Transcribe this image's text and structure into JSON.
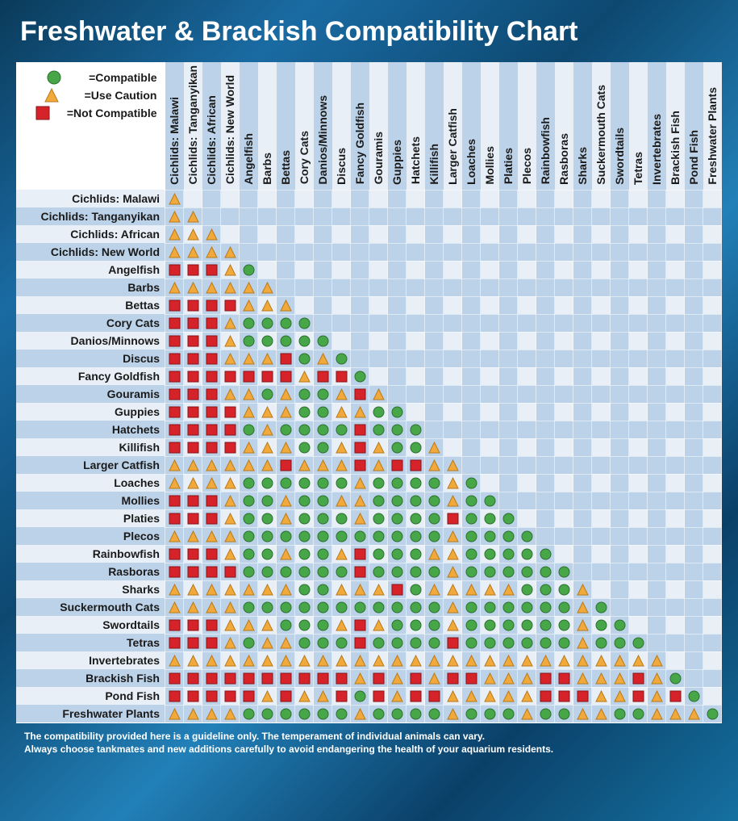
{
  "title": "Freshwater & Brackish Compatibility Chart",
  "legend": {
    "compatible": "=Compatible",
    "caution": "=Use Caution",
    "not": "=Not Compatible"
  },
  "colors": {
    "compatible_fill": "#46a648",
    "compatible_stroke": "#2e7030",
    "caution_fill": "#f2a93c",
    "caution_stroke": "#b87a1a",
    "not_fill": "#d6232a",
    "not_stroke": "#8a1318",
    "stripe_a": "#e8eff7",
    "stripe_b": "#bcd2e8"
  },
  "species": [
    "Cichlids: Malawi",
    "Cichlids: Tanganyikan",
    "Cichlids: African",
    "Cichlids: New World",
    "Angelfish",
    "Barbs",
    "Bettas",
    "Cory Cats",
    "Danios/Minnows",
    "Discus",
    "Fancy Goldfish",
    "Gouramis",
    "Guppies",
    "Hatchets",
    "Killifish",
    "Larger Catfish",
    "Loaches",
    "Mollies",
    "Platies",
    "Plecos",
    "Rainbowfish",
    "Rasboras",
    "Sharks",
    "Suckermouth Cats",
    "Swordtails",
    "Tetras",
    "Invertebrates",
    "Brackish Fish",
    "Pond Fish",
    "Freshwater Plants"
  ],
  "matrix": [
    [
      "Y"
    ],
    [
      "Y",
      "Y"
    ],
    [
      "Y",
      "Y",
      "Y"
    ],
    [
      "Y",
      "Y",
      "Y",
      "Y"
    ],
    [
      "R",
      "R",
      "R",
      "Y",
      "G"
    ],
    [
      "Y",
      "Y",
      "Y",
      "Y",
      "Y",
      "Y"
    ],
    [
      "R",
      "R",
      "R",
      "R",
      "Y",
      "Y",
      "Y"
    ],
    [
      "R",
      "R",
      "R",
      "Y",
      "G",
      "G",
      "G",
      "G"
    ],
    [
      "R",
      "R",
      "R",
      "Y",
      "G",
      "G",
      "G",
      "G",
      "G"
    ],
    [
      "R",
      "R",
      "R",
      "Y",
      "Y",
      "Y",
      "R",
      "G",
      "Y",
      "G"
    ],
    [
      "R",
      "R",
      "R",
      "R",
      "R",
      "R",
      "R",
      "Y",
      "R",
      "R",
      "G"
    ],
    [
      "R",
      "R",
      "R",
      "Y",
      "Y",
      "G",
      "Y",
      "G",
      "G",
      "Y",
      "R",
      "Y"
    ],
    [
      "R",
      "R",
      "R",
      "R",
      "Y",
      "Y",
      "Y",
      "G",
      "G",
      "Y",
      "Y",
      "G",
      "G"
    ],
    [
      "R",
      "R",
      "R",
      "R",
      "G",
      "Y",
      "G",
      "G",
      "G",
      "G",
      "R",
      "G",
      "G",
      "G"
    ],
    [
      "R",
      "R",
      "R",
      "R",
      "Y",
      "Y",
      "Y",
      "G",
      "G",
      "Y",
      "R",
      "Y",
      "G",
      "G",
      "Y"
    ],
    [
      "Y",
      "Y",
      "Y",
      "Y",
      "Y",
      "Y",
      "R",
      "Y",
      "Y",
      "Y",
      "R",
      "Y",
      "R",
      "R",
      "Y",
      "Y"
    ],
    [
      "Y",
      "Y",
      "Y",
      "Y",
      "G",
      "G",
      "G",
      "G",
      "G",
      "G",
      "Y",
      "G",
      "G",
      "G",
      "G",
      "Y",
      "G"
    ],
    [
      "R",
      "R",
      "R",
      "Y",
      "G",
      "G",
      "Y",
      "G",
      "G",
      "Y",
      "Y",
      "G",
      "G",
      "G",
      "G",
      "Y",
      "G",
      "G"
    ],
    [
      "R",
      "R",
      "R",
      "Y",
      "G",
      "G",
      "Y",
      "G",
      "G",
      "G",
      "Y",
      "G",
      "G",
      "G",
      "G",
      "R",
      "G",
      "G",
      "G"
    ],
    [
      "Y",
      "Y",
      "Y",
      "Y",
      "G",
      "G",
      "G",
      "G",
      "G",
      "G",
      "G",
      "G",
      "G",
      "G",
      "G",
      "Y",
      "G",
      "G",
      "G",
      "G"
    ],
    [
      "R",
      "R",
      "R",
      "Y",
      "G",
      "G",
      "Y",
      "G",
      "G",
      "Y",
      "R",
      "G",
      "G",
      "G",
      "Y",
      "Y",
      "G",
      "G",
      "G",
      "G",
      "G"
    ],
    [
      "R",
      "R",
      "R",
      "R",
      "G",
      "G",
      "G",
      "G",
      "G",
      "G",
      "R",
      "G",
      "G",
      "G",
      "G",
      "Y",
      "G",
      "G",
      "G",
      "G",
      "G",
      "G"
    ],
    [
      "Y",
      "Y",
      "Y",
      "Y",
      "Y",
      "Y",
      "Y",
      "G",
      "G",
      "Y",
      "Y",
      "Y",
      "R",
      "G",
      "Y",
      "Y",
      "Y",
      "Y",
      "Y",
      "G",
      "G",
      "G",
      "Y"
    ],
    [
      "Y",
      "Y",
      "Y",
      "Y",
      "G",
      "G",
      "G",
      "G",
      "G",
      "G",
      "G",
      "G",
      "G",
      "G",
      "G",
      "Y",
      "G",
      "G",
      "G",
      "G",
      "G",
      "G",
      "Y",
      "G"
    ],
    [
      "R",
      "R",
      "R",
      "Y",
      "Y",
      "Y",
      "G",
      "G",
      "G",
      "Y",
      "R",
      "Y",
      "G",
      "G",
      "G",
      "Y",
      "G",
      "G",
      "G",
      "G",
      "G",
      "G",
      "Y",
      "G",
      "G"
    ],
    [
      "R",
      "R",
      "R",
      "Y",
      "G",
      "Y",
      "Y",
      "G",
      "G",
      "G",
      "R",
      "G",
      "G",
      "G",
      "G",
      "R",
      "G",
      "G",
      "G",
      "G",
      "G",
      "G",
      "Y",
      "G",
      "G",
      "G"
    ],
    [
      "Y",
      "Y",
      "Y",
      "Y",
      "Y",
      "Y",
      "Y",
      "Y",
      "Y",
      "Y",
      "Y",
      "Y",
      "Y",
      "Y",
      "Y",
      "Y",
      "Y",
      "Y",
      "Y",
      "Y",
      "Y",
      "Y",
      "Y",
      "Y",
      "Y",
      "Y",
      "Y"
    ],
    [
      "R",
      "R",
      "R",
      "R",
      "R",
      "R",
      "R",
      "R",
      "R",
      "R",
      "Y",
      "R",
      "Y",
      "R",
      "Y",
      "R",
      "R",
      "Y",
      "Y",
      "Y",
      "R",
      "R",
      "Y",
      "Y",
      "Y",
      "R",
      "Y",
      "G"
    ],
    [
      "R",
      "R",
      "R",
      "R",
      "R",
      "Y",
      "R",
      "Y",
      "Y",
      "R",
      "G",
      "R",
      "Y",
      "R",
      "R",
      "Y",
      "Y",
      "Y",
      "Y",
      "Y",
      "R",
      "R",
      "R",
      "Y",
      "Y",
      "R",
      "Y",
      "R",
      "G"
    ],
    [
      "Y",
      "Y",
      "Y",
      "Y",
      "G",
      "G",
      "G",
      "G",
      "G",
      "G",
      "Y",
      "G",
      "G",
      "G",
      "G",
      "Y",
      "G",
      "G",
      "G",
      "Y",
      "G",
      "G",
      "Y",
      "Y",
      "G",
      "G",
      "Y",
      "Y",
      "Y",
      "G"
    ]
  ],
  "footnote": [
    "The compatibility provided here is a guideline only. The temperament of individual animals can vary.",
    "Always choose tankmates and new additions carefully to avoid endangering the health of your aquarium residents."
  ]
}
